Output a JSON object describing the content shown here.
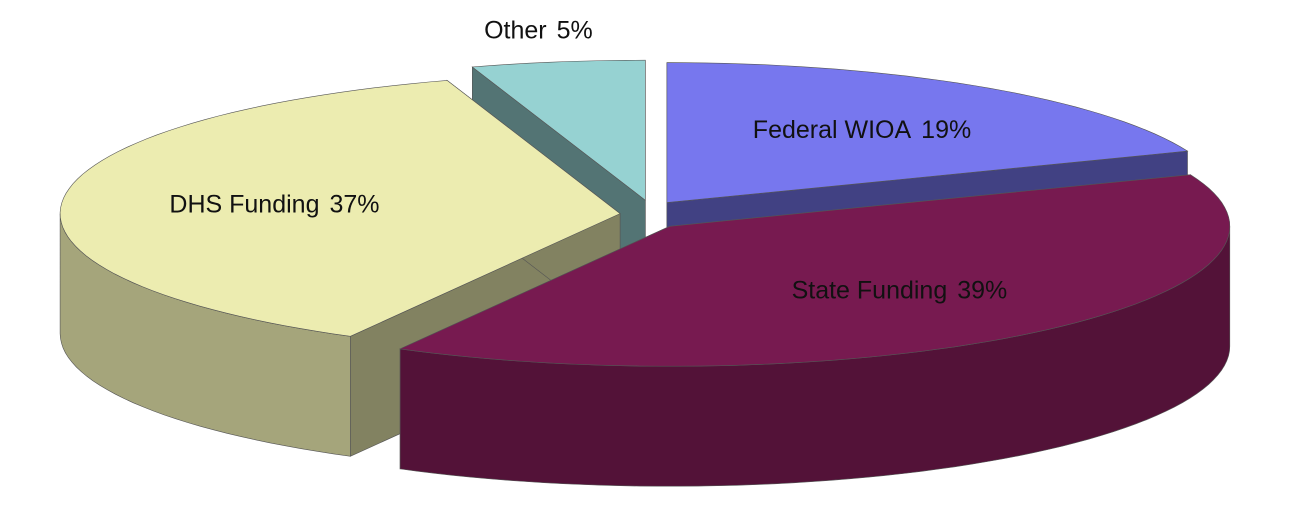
{
  "chart_data": {
    "type": "pie3d",
    "categories": [
      "Federal WIOA",
      "State Funding",
      "DHS Funding",
      "Other"
    ],
    "values": [
      19,
      39,
      37,
      5
    ],
    "value_labels": [
      "19%",
      "39%",
      "37%",
      "5%"
    ],
    "colors": [
      "#7777ee",
      "#771a50",
      "#ececb0",
      "#96d2d2"
    ]
  }
}
